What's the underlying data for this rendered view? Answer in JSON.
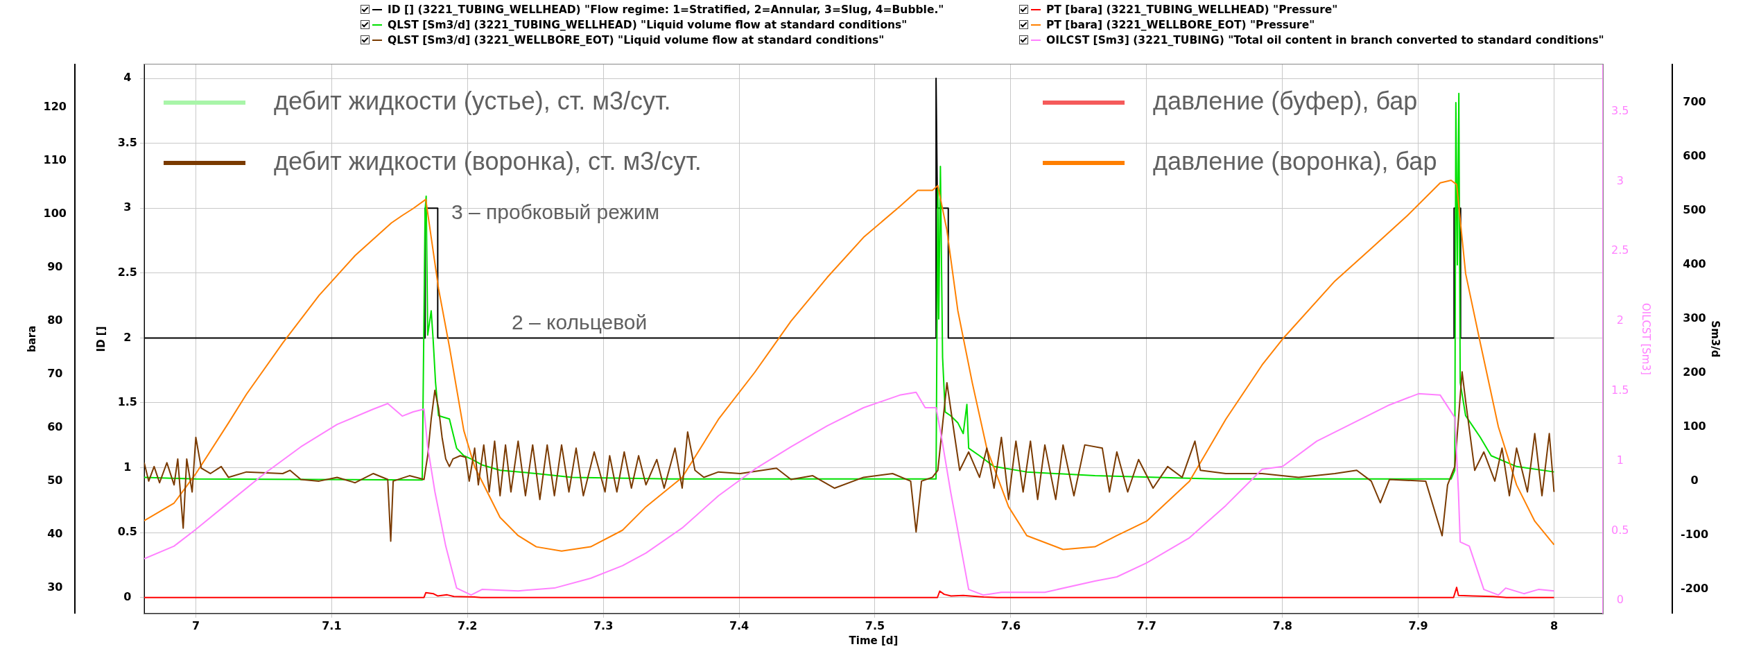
{
  "chart_data": [
    {
      "type": "line",
      "xlabel": "Time [d]",
      "ylabel": "ID []",
      "y2label": "bara",
      "y3label": "Sm3/d",
      "xlim": [
        6.962,
        8.036
      ],
      "xticks": [
        7,
        7.1,
        7.2,
        7.3,
        7.4,
        7.5,
        7.6,
        7.7,
        7.8,
        7.9,
        8
      ],
      "ylim": [
        -0.123,
        4.107
      ],
      "yticks": [
        0,
        0.5,
        1,
        1.5,
        2,
        2.5,
        3,
        3.5,
        4
      ],
      "y2lim": [
        25.2,
        128.1
      ],
      "y2ticks": [
        30,
        40,
        50,
        60,
        70,
        80,
        90,
        100,
        110,
        120
      ],
      "y3lim": [
        -244.8,
        770.5
      ],
      "y3ticks": [
        -200,
        -100,
        0,
        100,
        200,
        300,
        400,
        500,
        600,
        700
      ],
      "grid": true,
      "legend": "top",
      "annotations": [
        "дебит жидкости (устье), ст. м3/сут.",
        "дебит жидкости (воронка), ст. м3/сут.",
        "давление (буфер), бар",
        "давление (воронка), бар",
        "3 – пробковый режим",
        "2 – кольцевой"
      ],
      "series": [
        {
          "name": "ID [] (3221_TUBING_WELLHEAD) \"Flow regime: 1=Stratified, 2=Annular, 3=Slug, 4=Bubble.\"",
          "color": "#000000",
          "x": [
            6.962,
            7.1688,
            7.1688,
            7.1781,
            7.1781,
            7.545,
            7.545,
            7.546,
            7.554,
            7.554,
            7.9264,
            7.9264,
            7.9312,
            7.9312,
            8.0
          ],
          "values": [
            2,
            2,
            3,
            3,
            2,
            2,
            4,
            3,
            3,
            2,
            2,
            3,
            3,
            2,
            2
          ]
        },
        {
          "name": "PT [bara] (3221_TUBING_WELLHEAD) \"Pressure\"",
          "color": "#ff0000",
          "axis": "y2",
          "x": [
            6.962,
            7.168,
            7.1693,
            7.175,
            7.178,
            7.185,
            7.19,
            7.205,
            7.21,
            7.546,
            7.5477,
            7.551,
            7.556,
            7.565,
            7.58,
            7.59,
            7.926,
            7.9283,
            7.9296,
            7.94,
            7.955,
            7.965,
            8.0
          ],
          "values": [
            28.2,
            28.2,
            29.1,
            28.9,
            28.5,
            28.7,
            28.4,
            28.3,
            28.2,
            28.2,
            29.4,
            28.8,
            28.5,
            28.6,
            28.3,
            28.2,
            28.2,
            30.1,
            28.6,
            28.5,
            28.4,
            28.2,
            28.2
          ]
        },
        {
          "name": "QLST [Sm3/d] (3221_TUBING_WELLHEAD) \"Liquid volume flow at standard conditions\"",
          "color": "#00e000",
          "axis": "y3",
          "x": [
            6.962,
            7.0,
            7.1667,
            7.1688,
            7.1696,
            7.1707,
            7.1733,
            7.1747,
            7.1765,
            7.1787,
            7.1867,
            7.192,
            7.1973,
            7.2027,
            7.2107,
            7.224,
            7.2507,
            7.2773,
            7.35,
            7.45,
            7.545,
            7.5463,
            7.547,
            7.5482,
            7.5498,
            7.5517,
            7.5557,
            7.561,
            7.565,
            7.5677,
            7.569,
            7.577,
            7.5877,
            7.6118,
            7.662,
            7.75,
            7.9242,
            7.9269,
            7.9277,
            7.9288,
            7.9299,
            7.9309,
            7.9349,
            7.9403,
            7.9457,
            7.9537,
            7.9724,
            8.0
          ],
          "values": [
            7,
            4,
            2,
            500,
            527,
            270,
            315,
            263,
            182,
            121,
            115,
            61,
            47,
            41,
            30,
            20,
            14,
            7,
            4,
            4,
            4,
            540,
            300,
            582,
            229,
            128,
            121,
            108,
            88,
            142,
            61,
            47,
            27,
            17,
            10,
            4,
            4,
            20,
            700,
            400,
            717,
            182,
            121,
            101,
            81,
            47,
            27,
            17
          ]
        },
        {
          "name": "PT [bara] (3221_WELLBORE_EOT) \"Pressure\"",
          "color": "#ff8000",
          "axis": "y2",
          "x": [
            6.962,
            6.984,
            7.0,
            7.024,
            7.0373,
            7.064,
            7.0907,
            7.1173,
            7.144,
            7.152,
            7.16,
            7.1693,
            7.1733,
            7.1787,
            7.1867,
            7.1973,
            7.2053,
            7.224,
            7.2373,
            7.2507,
            7.2693,
            7.2907,
            7.3141,
            7.3314,
            7.3581,
            7.3848,
            7.4115,
            7.4382,
            7.4649,
            7.4916,
            7.5183,
            7.5316,
            7.5423,
            7.5463,
            7.553,
            7.561,
            7.5717,
            7.5824,
            7.5984,
            7.6118,
            7.6385,
            7.662,
            7.6781,
            7.7,
            7.7316,
            7.7583,
            7.7851,
            7.8,
            7.8386,
            7.8653,
            7.8921,
            7.9162,
            7.9242,
            7.9283,
            7.9349,
            7.9457,
            7.959,
            7.9724,
            7.9858,
            8.0
          ],
          "values": [
            42.6,
            45.9,
            51.4,
            60.9,
            66.3,
            75.9,
            84.8,
            92.3,
            98.4,
            99.8,
            101.1,
            102.8,
            95.7,
            86.1,
            75.2,
            59.5,
            52.7,
            43.2,
            39.8,
            37.7,
            36.9,
            37.7,
            40.8,
            45.2,
            50.7,
            61.6,
            70.4,
            80.0,
            88.2,
            95.7,
            101.5,
            104.5,
            104.5,
            105.4,
            97.0,
            82.0,
            68.4,
            56.1,
            45.2,
            39.8,
            37.2,
            37.7,
            39.8,
            42.5,
            50.0,
            61.6,
            71.8,
            76.6,
            87.5,
            93.6,
            99.8,
            105.9,
            106.4,
            105.6,
            88.9,
            75.9,
            60.2,
            49.3,
            42.5,
            38.1
          ]
        },
        {
          "name": "QLST [Sm3/d] (3221_WELLBORE_EOT) \"Liquid volume flow at standard conditions\"",
          "color": "#7a3a00",
          "axis": "y3",
          "x": [
            6.962,
            6.9653,
            6.9693,
            6.9733,
            6.9787,
            6.984,
            6.9867,
            6.9907,
            6.9933,
            6.9973,
            7.0,
            7.004,
            7.0107,
            7.0187,
            7.024,
            7.0373,
            7.064,
            7.0693,
            7.0773,
            7.0907,
            7.104,
            7.1173,
            7.1307,
            7.1413,
            7.1435,
            7.1453,
            7.1573,
            7.168,
            7.1707,
            7.1733,
            7.176,
            7.1787,
            7.1813,
            7.184,
            7.1867,
            7.1893,
            7.1947,
            7.1987,
            7.2013,
            7.2053,
            7.208,
            7.212,
            7.216,
            7.22,
            7.224,
            7.228,
            7.232,
            7.2373,
            7.2427,
            7.248,
            7.2533,
            7.2587,
            7.264,
            7.2693,
            7.2747,
            7.28,
            7.2853,
            7.2933,
            7.3013,
            7.3047,
            7.31,
            7.3154,
            7.3207,
            7.326,
            7.3314,
            7.3394,
            7.3448,
            7.3528,
            7.3581,
            7.3621,
            7.3675,
            7.3741,
            7.3848,
            7.4008,
            7.4275,
            7.4382,
            7.4542,
            7.4703,
            7.4916,
            7.513,
            7.5263,
            7.5303,
            7.5343,
            7.5423,
            7.5463,
            7.553,
            7.5584,
            7.5624,
            7.569,
            7.577,
            7.5824,
            7.5877,
            7.5931,
            7.5984,
            7.6038,
            7.6091,
            7.6145,
            7.6198,
            7.6251,
            7.6331,
            7.6385,
            7.6465,
            7.6545,
            7.6674,
            7.6727,
            7.6781,
            7.6861,
            7.6941,
            7.7048,
            7.7155,
            7.7262,
            7.7356,
            7.7396,
            7.7583,
            7.7851,
            7.8119,
            7.8386,
            7.8547,
            7.8654,
            7.8721,
            7.8788,
            7.9055,
            7.9176,
            7.9216,
            7.9269,
            7.9323,
            7.9349,
            7.9416,
            7.9483,
            7.9564,
            7.9617,
            7.9671,
            7.9724,
            7.9804,
            7.9858,
            7.9911,
            7.9965,
            8.0
          ],
          "values": [
            34,
            0,
            27,
            -3,
            34,
            -7,
            41,
            -87,
            41,
            -20,
            81,
            24,
            14,
            27,
            7,
            17,
            14,
            20,
            3,
            0,
            7,
            -3,
            14,
            3,
            -111,
            0,
            10,
            3,
            47,
            115,
            168,
            135,
            81,
            41,
            27,
            41,
            47,
            44,
            0,
            61,
            -7,
            67,
            -20,
            74,
            -27,
            67,
            -20,
            74,
            -27,
            67,
            -34,
            67,
            -27,
            67,
            -20,
            61,
            -27,
            54,
            -20,
            47,
            -20,
            54,
            -13,
            47,
            -7,
            40,
            -13,
            61,
            -13,
            91,
            20,
            7,
            17,
            14,
            24,
            3,
            10,
            -13,
            7,
            14,
            0,
            -94,
            0,
            7,
            20,
            182,
            88,
            20,
            54,
            7,
            61,
            -13,
            81,
            -34,
            74,
            -20,
            74,
            -34,
            67,
            -34,
            67,
            -27,
            67,
            61,
            -20,
            54,
            -20,
            40,
            -13,
            27,
            7,
            74,
            20,
            14,
            14,
            7,
            14,
            20,
            0,
            -40,
            3,
            0,
            -101,
            -7,
            27,
            202,
            148,
            20,
            54,
            0,
            61,
            -27,
            61,
            -20,
            88,
            -27,
            88,
            -20
          ]
        }
      ]
    },
    {
      "type": "line",
      "ylabel": "OILCST [Sm3]",
      "xlim": [
        6.962,
        8.036
      ],
      "ylim": [
        -0.092,
        3.835
      ],
      "yticks": [
        0,
        0.5,
        1,
        1.5,
        2,
        2.5,
        3,
        3.5
      ],
      "tick_labels": "y",
      "legend": "top",
      "series": [
        {
          "name": "OILCST [Sm3] (3221_TUBING) \"Total oil content in branch converted to standard conditions\"",
          "color": "#ff80ff",
          "x": [
            6.962,
            6.984,
            7.0,
            7.024,
            7.0507,
            7.0773,
            7.104,
            7.1307,
            7.1413,
            7.152,
            7.16,
            7.168,
            7.1707,
            7.176,
            7.184,
            7.192,
            7.2027,
            7.2107,
            7.2373,
            7.264,
            7.2907,
            7.3141,
            7.3314,
            7.3581,
            7.3848,
            7.4115,
            7.4382,
            7.4649,
            7.4916,
            7.5183,
            7.5303,
            7.537,
            7.545,
            7.549,
            7.5557,
            7.569,
            7.5797,
            7.5931,
            7.6251,
            7.662,
            7.6781,
            7.7,
            7.7316,
            7.7583,
            7.7851,
            7.8001,
            7.8252,
            7.852,
            7.8788,
            7.9002,
            7.9162,
            7.9269,
            7.9296,
            7.9309,
            7.9376,
            7.9483,
            7.959,
            7.9644,
            7.9778,
            7.9885,
            8.0
          ],
          "values": [
            0.3,
            0.39,
            0.51,
            0.7,
            0.91,
            1.1,
            1.26,
            1.37,
            1.41,
            1.32,
            1.35,
            1.37,
            1.1,
            0.78,
            0.39,
            0.09,
            0.04,
            0.08,
            0.07,
            0.09,
            0.16,
            0.25,
            0.34,
            0.52,
            0.75,
            0.94,
            1.1,
            1.25,
            1.38,
            1.47,
            1.49,
            1.38,
            1.38,
            1.17,
            0.78,
            0.08,
            0.04,
            0.06,
            0.06,
            0.14,
            0.17,
            0.27,
            0.45,
            0.68,
            0.94,
            0.96,
            1.14,
            1.27,
            1.4,
            1.48,
            1.47,
            1.31,
            0.78,
            0.42,
            0.39,
            0.08,
            0.04,
            0.09,
            0.05,
            0.08,
            0.07
          ]
        }
      ]
    }
  ]
}
